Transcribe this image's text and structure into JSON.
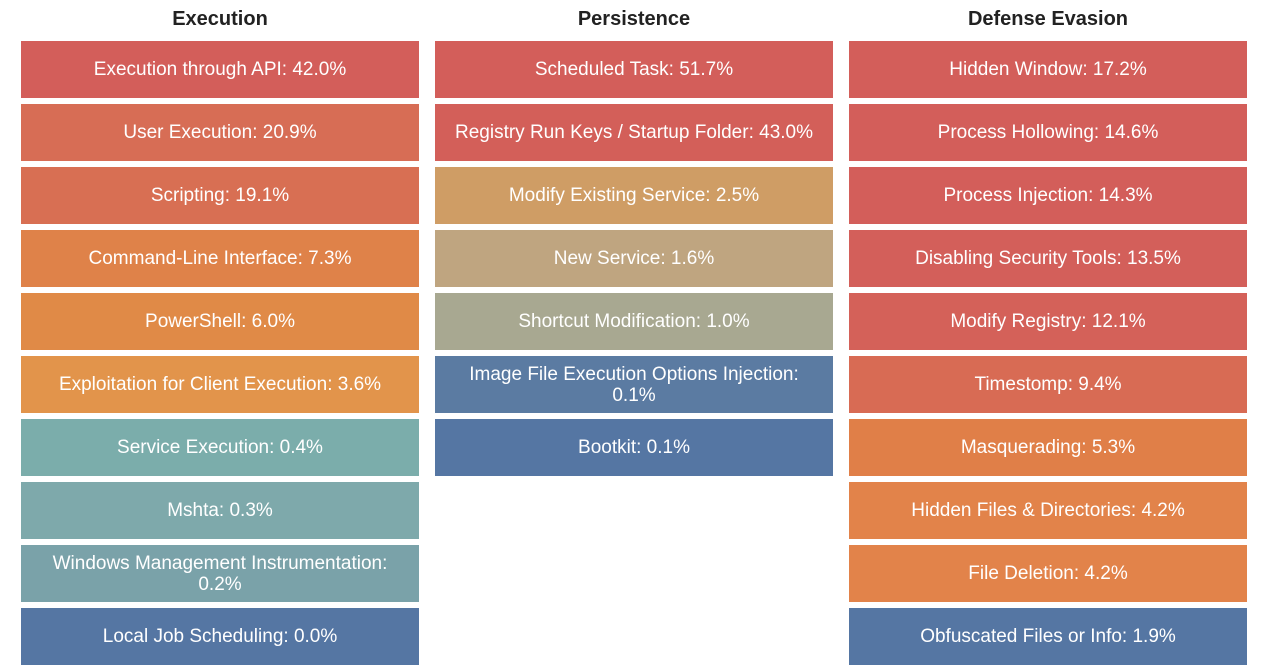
{
  "columns": [
    {
      "title": "Execution",
      "items": [
        {
          "label": "Execution through API: 42.0%",
          "color": "#d35e5a"
        },
        {
          "label": "User Execution: 20.9%",
          "color": "#d76d55"
        },
        {
          "label": "Scripting: 19.1%",
          "color": "#d86f53"
        },
        {
          "label": "Command-Line Interface: 7.3%",
          "color": "#df8249"
        },
        {
          "label": "PowerShell: 6.0%",
          "color": "#e08a47"
        },
        {
          "label": "Exploitation for Client Execution: 3.6%",
          "color": "#e2944b"
        },
        {
          "label": "Service Execution: 0.4%",
          "color": "#7badab"
        },
        {
          "label": "Mshta: 0.3%",
          "color": "#7ea9ab"
        },
        {
          "label": "Windows Management Instrumentation: 0.2%",
          "color": "#7aa2a9"
        },
        {
          "label": "Local Job Scheduling: 0.0%",
          "color": "#5576a3"
        }
      ]
    },
    {
      "title": "Persistence",
      "items": [
        {
          "label": "Scheduled Task: 51.7%",
          "color": "#d35e5a"
        },
        {
          "label": "Registry Run Keys / Startup Folder: 43.0%",
          "color": "#d35f59"
        },
        {
          "label": "Modify Existing Service: 2.5%",
          "color": "#cf9d65"
        },
        {
          "label": "New Service: 1.6%",
          "color": "#bfa580"
        },
        {
          "label": "Shortcut Modification: 1.0%",
          "color": "#a8a891"
        },
        {
          "label": "Image File Execution Options Injection: 0.1%",
          "color": "#5b7ba2"
        },
        {
          "label": "Bootkit: 0.1%",
          "color": "#5576a3"
        }
      ]
    },
    {
      "title": "Defense Evasion",
      "items": [
        {
          "label": "Hidden Window: 17.2%",
          "color": "#d35e5a"
        },
        {
          "label": "Process Hollowing: 14.6%",
          "color": "#d35e5a"
        },
        {
          "label": "Process Injection: 14.3%",
          "color": "#d35e5a"
        },
        {
          "label": "Disabling Security Tools: 13.5%",
          "color": "#d35f5a"
        },
        {
          "label": "Modify Registry: 12.1%",
          "color": "#d46159"
        },
        {
          "label": "Timestomp: 9.4%",
          "color": "#d86b54"
        },
        {
          "label": "Masquerading: 5.3%",
          "color": "#e07f48"
        },
        {
          "label": "Hidden Files & Directories: 4.2%",
          "color": "#e2834a"
        },
        {
          "label": "File Deletion: 4.2%",
          "color": "#e2834a"
        },
        {
          "label": "Obfuscated Files or Info: 1.9%",
          "color": "#5576a3"
        }
      ]
    }
  ]
}
